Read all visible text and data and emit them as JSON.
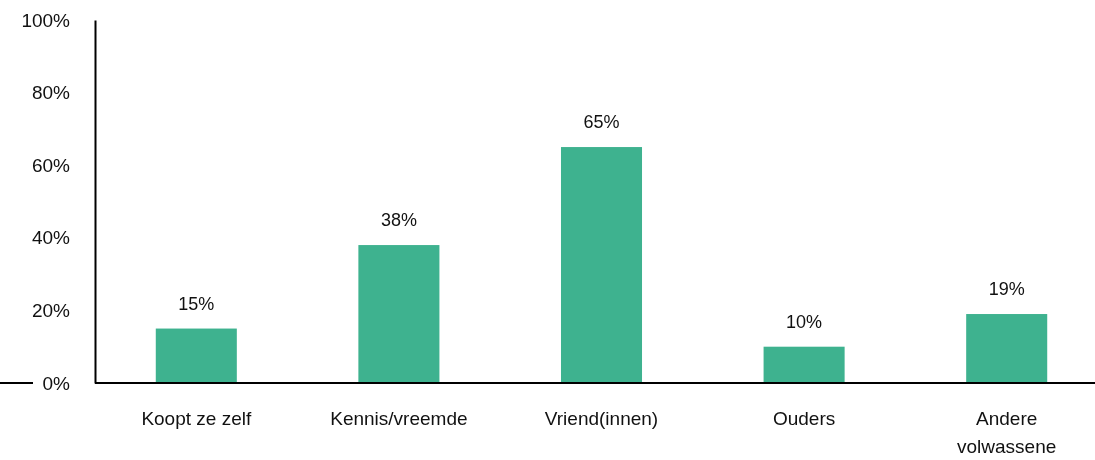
{
  "chart_data": {
    "type": "bar",
    "categories": [
      "Koopt ze zelf",
      "Kennis/vreemde",
      "Vriend(innen)",
      "Ouders",
      "Andere volwassene"
    ],
    "values": [
      15,
      38,
      65,
      10,
      19
    ],
    "color": "#3eb28f",
    "value_labels": [
      "15%",
      "38%",
      "65%",
      "10%",
      "19%"
    ],
    "ylim": [
      0,
      100
    ],
    "yticks": [
      {
        "value": 0,
        "label": "0%"
      },
      {
        "value": 20,
        "label": "20%"
      },
      {
        "value": 40,
        "label": "40%"
      },
      {
        "value": 60,
        "label": "60%"
      },
      {
        "value": 80,
        "label": "80%"
      },
      {
        "value": 100,
        "label": "100%"
      }
    ]
  }
}
